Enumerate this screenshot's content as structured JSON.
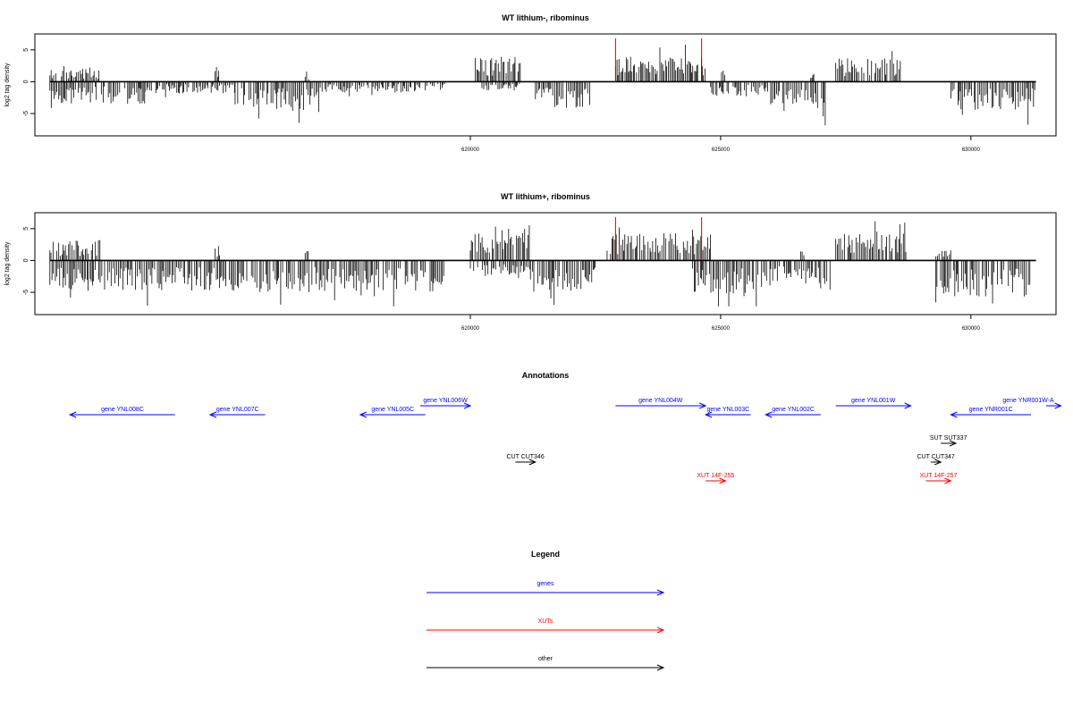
{
  "chart_data": [
    {
      "type": "bar",
      "title": "WT lithium-, ribominus",
      "ylabel": "log2 tag density",
      "xlabel": "",
      "xlim": [
        611300,
        631700
      ],
      "ylim": [
        -8.5,
        7.5
      ],
      "xticks": [
        {
          "value": 620000,
          "label": "620000"
        },
        {
          "value": 625000,
          "label": "625000"
        },
        {
          "value": 630000,
          "label": "630000"
        }
      ],
      "yticks": [
        {
          "value": 5,
          "label": "5"
        },
        {
          "value": 0,
          "label": "0"
        },
        {
          "value": -5,
          "label": "-5"
        }
      ],
      "baseline_range": [
        611600,
        631300
      ],
      "marker_color": "#cc0000",
      "markers": [
        {
          "x": 622900,
          "y": 6.8
        },
        {
          "x": 624620,
          "y": 6.8
        }
      ],
      "density_profile": [
        {
          "start": 611600,
          "end": 613500,
          "strand": "minus",
          "amp": 3.0
        },
        {
          "start": 611600,
          "end": 612600,
          "strand": "plus",
          "amp": 1.8
        },
        {
          "start": 613500,
          "end": 615300,
          "strand": "minus",
          "amp": 1.6
        },
        {
          "start": 614900,
          "end": 615000,
          "strand": "plus",
          "amp": 2.6
        },
        {
          "start": 615300,
          "end": 617000,
          "strand": "minus",
          "amp": 4.0
        },
        {
          "start": 616700,
          "end": 616800,
          "strand": "plus",
          "amp": 1.5
        },
        {
          "start": 617000,
          "end": 619000,
          "strand": "minus",
          "amp": 1.5
        },
        {
          "start": 619100,
          "end": 619500,
          "strand": "minus",
          "amp": 1.2
        },
        {
          "start": 620100,
          "end": 621000,
          "strand": "plus",
          "amp": 3.5
        },
        {
          "start": 620200,
          "end": 621000,
          "strand": "minus",
          "amp": 1.2
        },
        {
          "start": 621300,
          "end": 622400,
          "strand": "minus",
          "amp": 3.6
        },
        {
          "start": 622900,
          "end": 624700,
          "strand": "plus",
          "amp": 3.4
        },
        {
          "start": 624800,
          "end": 626000,
          "strand": "minus",
          "amp": 2.0
        },
        {
          "start": 625000,
          "end": 625100,
          "strand": "plus",
          "amp": 1.4
        },
        {
          "start": 626000,
          "end": 627100,
          "strand": "minus",
          "amp": 4.0
        },
        {
          "start": 626800,
          "end": 626900,
          "strand": "plus",
          "amp": 1.2
        },
        {
          "start": 627300,
          "end": 628600,
          "strand": "plus",
          "amp": 3.2
        },
        {
          "start": 629600,
          "end": 631300,
          "strand": "minus",
          "amp": 4.0
        }
      ]
    },
    {
      "type": "bar",
      "title": "WT lithium+, ribominus",
      "ylabel": "log2 tag density",
      "xlabel": "",
      "xlim": [
        611300,
        631700
      ],
      "ylim": [
        -8.5,
        7.5
      ],
      "xticks": [
        {
          "value": 620000,
          "label": "620000"
        },
        {
          "value": 625000,
          "label": "625000"
        },
        {
          "value": 630000,
          "label": "630000"
        }
      ],
      "yticks": [
        {
          "value": 5,
          "label": "5"
        },
        {
          "value": 0,
          "label": "0"
        },
        {
          "value": -5,
          "label": "-5"
        }
      ],
      "baseline_range": [
        611600,
        631300
      ],
      "marker_color": "#cc0000",
      "markers": [
        {
          "x": 622900,
          "y": 6.8
        },
        {
          "x": 624620,
          "y": 6.8
        }
      ],
      "density_profile": [
        {
          "start": 611600,
          "end": 615600,
          "strand": "minus",
          "amp": 4.2
        },
        {
          "start": 611600,
          "end": 612600,
          "strand": "plus",
          "amp": 2.8
        },
        {
          "start": 614900,
          "end": 615000,
          "strand": "plus",
          "amp": 2.0
        },
        {
          "start": 615600,
          "end": 619500,
          "strand": "minus",
          "amp": 4.3
        },
        {
          "start": 616700,
          "end": 616800,
          "strand": "plus",
          "amp": 1.5
        },
        {
          "start": 620000,
          "end": 621200,
          "strand": "plus",
          "amp": 4.8
        },
        {
          "start": 620000,
          "end": 621200,
          "strand": "minus",
          "amp": 2.0
        },
        {
          "start": 621200,
          "end": 622500,
          "strand": "minus",
          "amp": 4.3
        },
        {
          "start": 622700,
          "end": 624800,
          "strand": "plus",
          "amp": 3.8
        },
        {
          "start": 624400,
          "end": 626000,
          "strand": "minus",
          "amp": 4.6
        },
        {
          "start": 626000,
          "end": 627200,
          "strand": "minus",
          "amp": 3.2
        },
        {
          "start": 626600,
          "end": 626700,
          "strand": "plus",
          "amp": 1.4
        },
        {
          "start": 627300,
          "end": 628700,
          "strand": "plus",
          "amp": 3.6
        },
        {
          "start": 629300,
          "end": 631200,
          "strand": "minus",
          "amp": 5.0
        },
        {
          "start": 629300,
          "end": 629600,
          "strand": "plus",
          "amp": 1.5
        }
      ]
    },
    {
      "type": "annotation_track",
      "title": "Annotations",
      "xlim": [
        611300,
        631700
      ],
      "features": [
        {
          "label": "gene YNL008C",
          "category": "gene",
          "start": 612000,
          "end": 614100,
          "strand": "-",
          "row": 2
        },
        {
          "label": "gene YNL007C",
          "category": "gene",
          "start": 614800,
          "end": 615900,
          "strand": "-",
          "row": 2
        },
        {
          "label": "gene YNL006W",
          "category": "gene",
          "start": 619000,
          "end": 620000,
          "strand": "+",
          "row": 1
        },
        {
          "label": "gene YNL005C",
          "category": "gene",
          "start": 617800,
          "end": 619100,
          "strand": "-",
          "row": 2
        },
        {
          "label": "gene YNL004W",
          "category": "gene",
          "start": 622900,
          "end": 624700,
          "strand": "+",
          "row": 1
        },
        {
          "label": "gene YNL003C",
          "category": "gene",
          "start": 624700,
          "end": 625600,
          "strand": "-",
          "row": 2
        },
        {
          "label": "gene YNL002C",
          "category": "gene",
          "start": 625900,
          "end": 627000,
          "strand": "-",
          "row": 2
        },
        {
          "label": "gene YNL001W",
          "category": "gene",
          "start": 627300,
          "end": 628800,
          "strand": "+",
          "row": 1
        },
        {
          "label": "gene YNR001C",
          "category": "gene",
          "start": 629600,
          "end": 631200,
          "strand": "-",
          "row": 2
        },
        {
          "label": "gene YNR001W-A",
          "category": "gene",
          "start": 631500,
          "end": 631800,
          "strand": "+",
          "row": 1
        },
        {
          "label": "SUT SUT337",
          "category": "other",
          "start": 629400,
          "end": 629700,
          "strand": "+",
          "row": 4
        },
        {
          "label": "CUT CUT346",
          "category": "other",
          "start": 620900,
          "end": 621300,
          "strand": "+",
          "row": 5
        },
        {
          "label": "CUT CUT347",
          "category": "other",
          "start": 629200,
          "end": 629400,
          "strand": "+",
          "row": 5
        },
        {
          "label": "XUT 14F-255",
          "category": "xut",
          "start": 624700,
          "end": 625100,
          "strand": "+",
          "row": 6
        },
        {
          "label": "XUT 14F-257",
          "category": "xut",
          "start": 629100,
          "end": 629600,
          "strand": "+",
          "row": 6
        }
      ]
    }
  ],
  "legend": {
    "title": "Legend",
    "items": [
      {
        "label": "genes",
        "color": "#0000ff"
      },
      {
        "label": "XUTs",
        "color": "#ff0000"
      },
      {
        "label": "other",
        "color": "#000000"
      }
    ]
  },
  "colors": {
    "gene": "#0000ff",
    "xut": "#ff0000",
    "other": "#000000"
  }
}
